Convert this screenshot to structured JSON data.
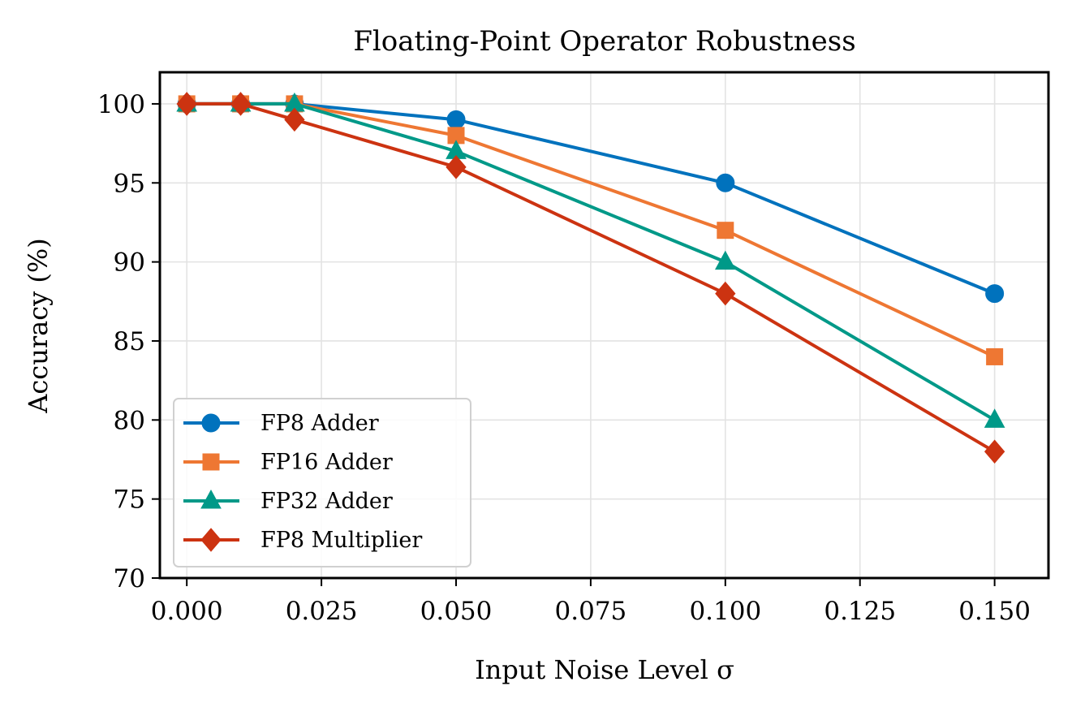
{
  "chart_data": {
    "type": "line",
    "title": "Floating-Point Operator Robustness",
    "xlabel": "Input Noise Level σ",
    "ylabel": "Accuracy (%)",
    "xlim": [
      -0.005,
      0.16
    ],
    "ylim": [
      70,
      102
    ],
    "grid": true,
    "legend_position": "lower-left",
    "x_ticks": [
      0.0,
      0.025,
      0.05,
      0.075,
      0.1,
      0.125,
      0.15
    ],
    "x_tick_labels": [
      "0.000",
      "0.025",
      "0.050",
      "0.075",
      "0.100",
      "0.125",
      "0.150"
    ],
    "y_ticks": [
      70,
      75,
      80,
      85,
      90,
      95,
      100
    ],
    "y_tick_labels": [
      "70",
      "75",
      "80",
      "85",
      "90",
      "95",
      "100"
    ],
    "x": [
      0.0,
      0.01,
      0.02,
      0.05,
      0.1,
      0.15
    ],
    "series": [
      {
        "name": "FP8 Adder",
        "color": "#0072bd",
        "marker": "circle",
        "values": [
          100,
          100,
          100,
          99,
          95,
          88
        ]
      },
      {
        "name": "FP16 Adder",
        "color": "#ee7733",
        "marker": "square",
        "values": [
          100,
          100,
          100,
          98,
          92,
          84
        ]
      },
      {
        "name": "FP32 Adder",
        "color": "#009988",
        "marker": "triangle",
        "values": [
          100,
          100,
          100,
          97,
          90,
          80
        ]
      },
      {
        "name": "FP8 Multiplier",
        "color": "#cc3311",
        "marker": "diamond",
        "values": [
          100,
          100,
          99,
          96,
          88,
          78
        ]
      }
    ]
  }
}
